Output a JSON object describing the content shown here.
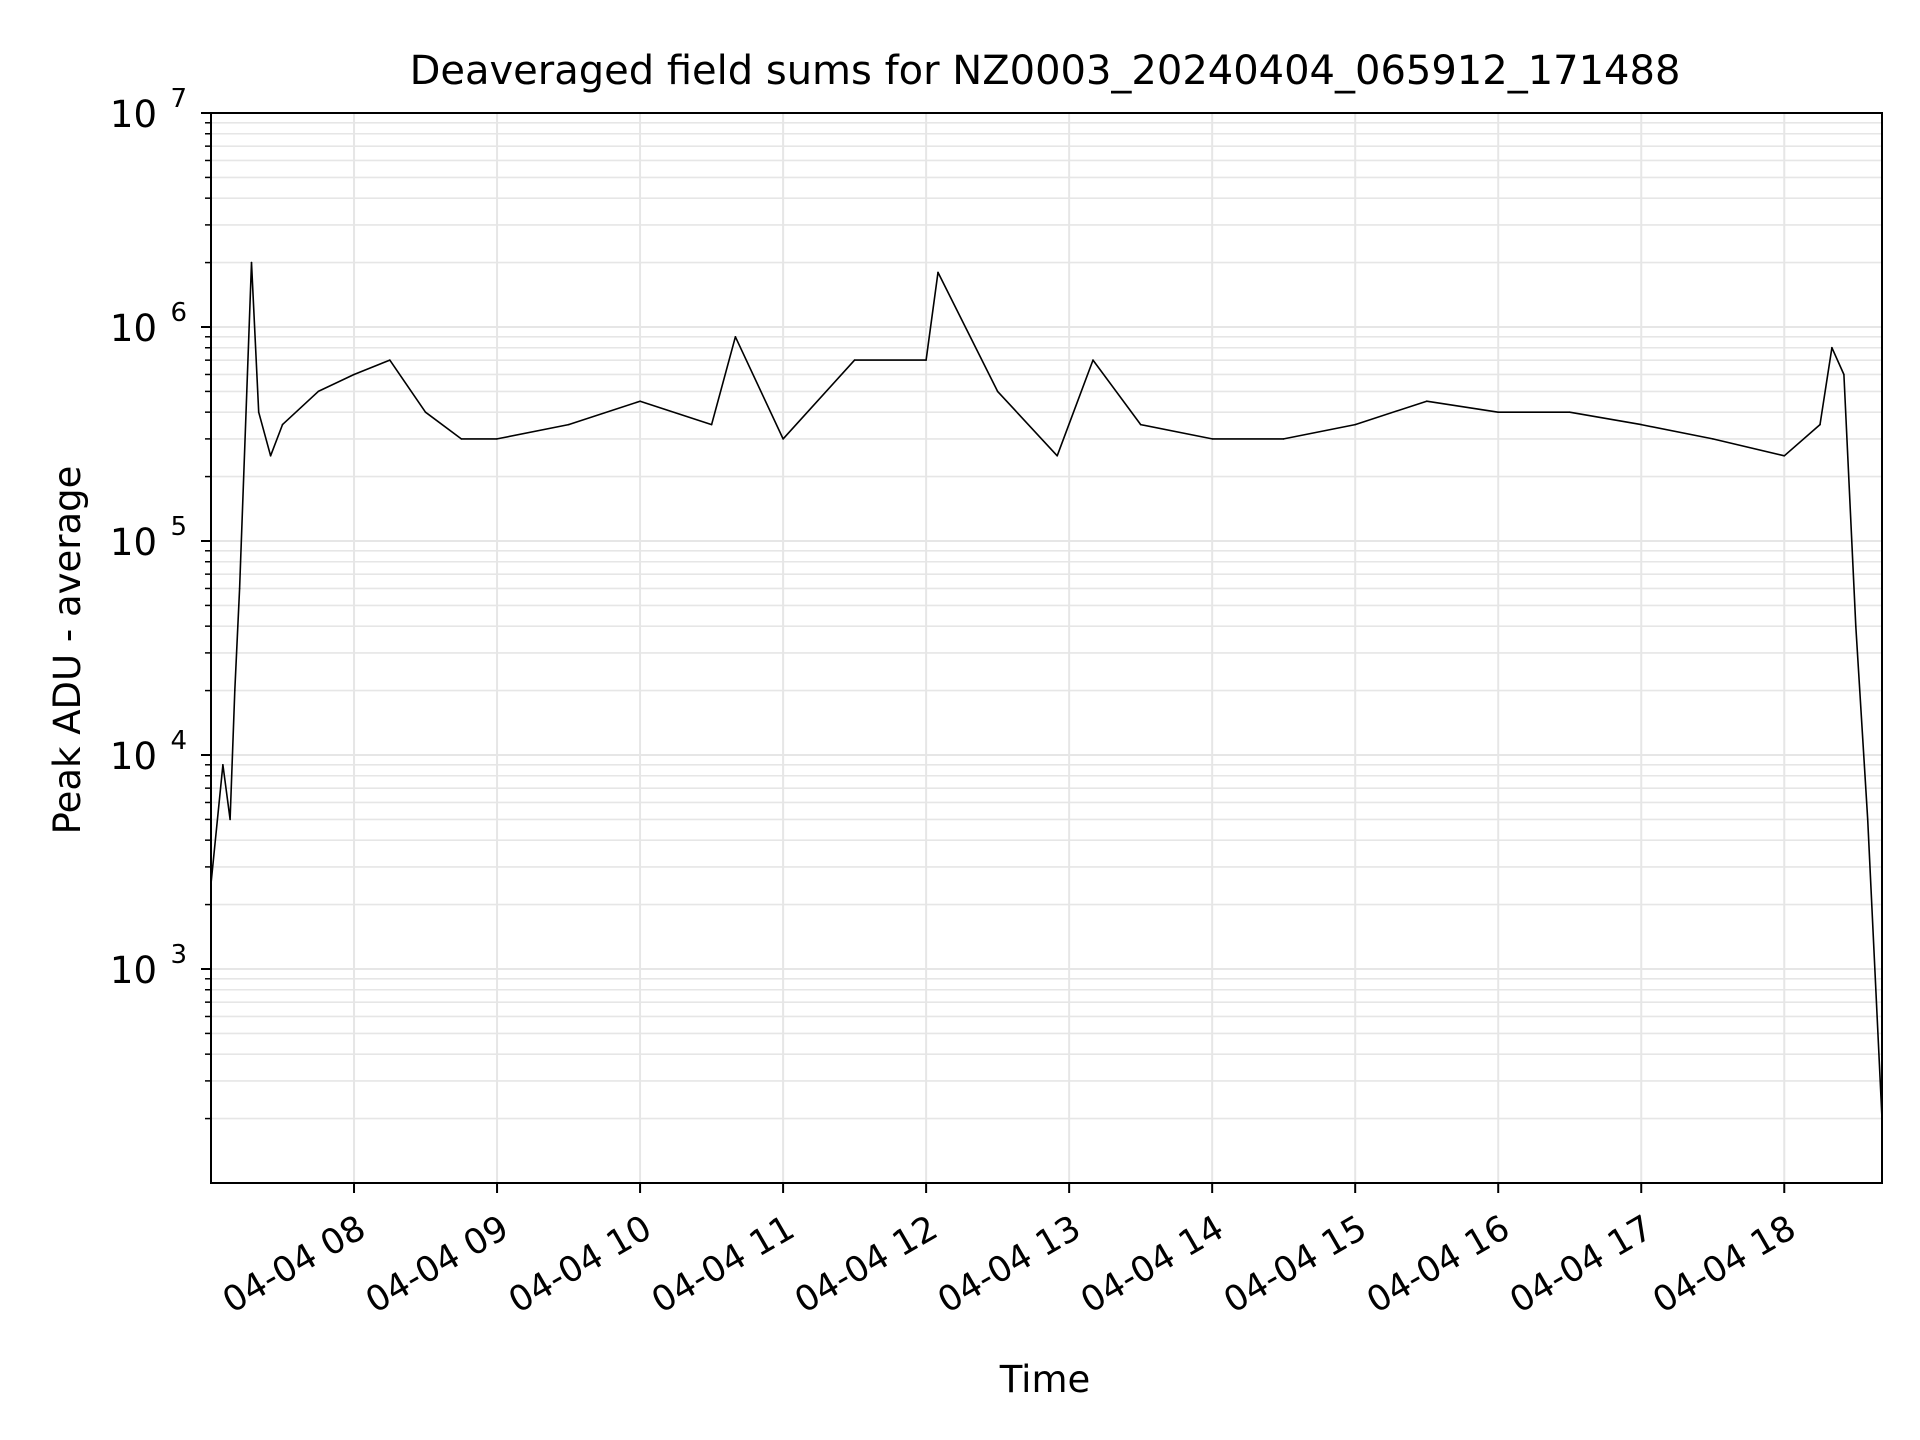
{
  "chart_data": {
    "type": "line",
    "title": "Deaveraged field sums for NZ0003_20240404_065912_171488",
    "xlabel": "Time",
    "ylabel": "Peak ADU - average",
    "yscale": "log",
    "ylim": [
      100,
      10000000
    ],
    "xlim": [
      "2024-04-04 07:00",
      "2024-04-04 18:41"
    ],
    "grid": true,
    "x_tick_labels": [
      "04-04 08",
      "04-04 09",
      "04-04 10",
      "04-04 11",
      "04-04 12",
      "04-04 13",
      "04-04 14",
      "04-04 15",
      "04-04 16",
      "04-04 17",
      "04-04 18"
    ],
    "y_tick_labels": [
      {
        "base": "10",
        "exp": "3",
        "value": 1000
      },
      {
        "base": "10",
        "exp": "4",
        "value": 10000
      },
      {
        "base": "10",
        "exp": "5",
        "value": 100000
      },
      {
        "base": "10",
        "exp": "6",
        "value": 1000000
      },
      {
        "base": "10",
        "exp": "7",
        "value": 10000000
      }
    ],
    "line_color": "#000000",
    "grid_color": "#e6e6e6",
    "series": [
      {
        "x": [
          "2024-04-04 07:00",
          "2024-04-04 07:05",
          "2024-04-04 07:08",
          "2024-04-04 07:10",
          "2024-04-04 07:12",
          "2024-04-04 07:15",
          "2024-04-04 07:17",
          "2024-04-04 07:20",
          "2024-04-04 07:25",
          "2024-04-04 07:30",
          "2024-04-04 07:45",
          "2024-04-04 08:00",
          "2024-04-04 08:15",
          "2024-04-04 08:30",
          "2024-04-04 08:45",
          "2024-04-04 09:00",
          "2024-04-04 09:30",
          "2024-04-04 10:00",
          "2024-04-04 10:30",
          "2024-04-04 10:40",
          "2024-04-04 11:00",
          "2024-04-04 11:30",
          "2024-04-04 12:00",
          "2024-04-04 12:05",
          "2024-04-04 12:30",
          "2024-04-04 12:55",
          "2024-04-04 13:10",
          "2024-04-04 13:30",
          "2024-04-04 14:00",
          "2024-04-04 14:30",
          "2024-04-04 15:00",
          "2024-04-04 15:30",
          "2024-04-04 16:00",
          "2024-04-04 16:30",
          "2024-04-04 17:00",
          "2024-04-04 17:30",
          "2024-04-04 18:00",
          "2024-04-04 18:15",
          "2024-04-04 18:20",
          "2024-04-04 18:25",
          "2024-04-04 18:30",
          "2024-04-04 18:35",
          "2024-04-04 18:41"
        ],
        "y": [
          2500,
          9000,
          5000,
          20000,
          60000,
          500000,
          2000000,
          400000,
          250000,
          350000,
          500000,
          600000,
          700000,
          400000,
          300000,
          300000,
          350000,
          450000,
          350000,
          900000,
          300000,
          700000,
          700000,
          1800000,
          500000,
          250000,
          700000,
          350000,
          300000,
          300000,
          350000,
          450000,
          400000,
          400000,
          350000,
          300000,
          250000,
          350000,
          800000,
          600000,
          40000,
          5000,
          200
        ]
      }
    ]
  }
}
